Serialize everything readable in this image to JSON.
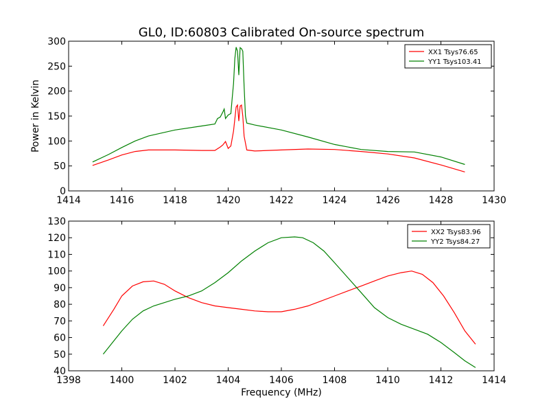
{
  "figure": {
    "title": "GL0, ID:60803 Calibrated On-source spectrum",
    "xlabel": "Frequency (MHz)"
  },
  "chart_data": [
    {
      "type": "line",
      "title": "GL0, ID:60803 Calibrated On-source spectrum",
      "xlabel": "",
      "ylabel": "Power in Kelvin",
      "xlim": [
        1414,
        1430
      ],
      "ylim": [
        0,
        300
      ],
      "xticks": [
        1414,
        1416,
        1418,
        1420,
        1422,
        1424,
        1426,
        1428,
        1430
      ],
      "yticks": [
        0,
        50,
        100,
        150,
        200,
        250,
        300
      ],
      "grid": false,
      "legend_position": "top-right",
      "series": [
        {
          "name": "XX1 Tsys76.65",
          "color": "#ff0000",
          "x": [
            1414.9,
            1415.5,
            1416,
            1416.5,
            1417,
            1418,
            1419,
            1419.5,
            1419.7,
            1419.8,
            1419.9,
            1420.0,
            1420.1,
            1420.2,
            1420.3,
            1420.35,
            1420.4,
            1420.45,
            1420.5,
            1420.55,
            1420.6,
            1420.7,
            1421,
            1422,
            1423,
            1424,
            1425,
            1426,
            1427,
            1428,
            1428.9
          ],
          "y": [
            51,
            62,
            72,
            79,
            82,
            82,
            81,
            81,
            88,
            92,
            99,
            85,
            90,
            120,
            168,
            172,
            140,
            170,
            172,
            150,
            110,
            82,
            80,
            82,
            84,
            83,
            79,
            74,
            66,
            52,
            38
          ]
        },
        {
          "name": "YY1 Tsys103.41",
          "color": "#008000",
          "x": [
            1414.9,
            1415.5,
            1416,
            1416.5,
            1417,
            1418,
            1419,
            1419.5,
            1419.6,
            1419.7,
            1419.8,
            1419.85,
            1419.9,
            1420.0,
            1420.1,
            1420.15,
            1420.2,
            1420.25,
            1420.3,
            1420.35,
            1420.4,
            1420.45,
            1420.5,
            1420.55,
            1420.6,
            1420.65,
            1420.7,
            1421,
            1422,
            1423,
            1424,
            1425,
            1426,
            1427,
            1428,
            1428.9
          ],
          "y": [
            58,
            73,
            87,
            100,
            110,
            122,
            130,
            134,
            145,
            148,
            158,
            164,
            145,
            152,
            155,
            185,
            215,
            265,
            288,
            280,
            232,
            287,
            285,
            280,
            210,
            150,
            136,
            132,
            122,
            108,
            93,
            83,
            79,
            78,
            68,
            53
          ]
        }
      ]
    },
    {
      "type": "line",
      "title": "",
      "xlabel": "Frequency (MHz)",
      "ylabel": "",
      "xlim": [
        1398,
        1414
      ],
      "ylim": [
        40,
        130
      ],
      "xticks": [
        1398,
        1400,
        1402,
        1404,
        1406,
        1408,
        1410,
        1412,
        1414
      ],
      "yticks": [
        40,
        50,
        60,
        70,
        80,
        90,
        100,
        110,
        120,
        130
      ],
      "grid": false,
      "legend_position": "top-right",
      "series": [
        {
          "name": "XX2 Tsys83.96",
          "color": "#ff0000",
          "x": [
            1399.3,
            1399.7,
            1400.0,
            1400.4,
            1400.8,
            1401.2,
            1401.6,
            1402.0,
            1402.5,
            1403.0,
            1403.5,
            1404.0,
            1404.5,
            1405.0,
            1405.5,
            1406.0,
            1406.5,
            1407.0,
            1407.5,
            1408.0,
            1408.5,
            1409.0,
            1409.5,
            1410.0,
            1410.5,
            1410.9,
            1411.3,
            1411.7,
            1412.1,
            1412.5,
            1412.9,
            1413.3
          ],
          "y": [
            67,
            77,
            85,
            91,
            93.5,
            94,
            92,
            88,
            84,
            81,
            79,
            78,
            77,
            76,
            75.5,
            75.5,
            77,
            79,
            82,
            85,
            88,
            91,
            94,
            97,
            99,
            100,
            98,
            93,
            85,
            75,
            64,
            56
          ]
        },
        {
          "name": "YY2 Tsys84.27",
          "color": "#008000",
          "x": [
            1399.3,
            1399.7,
            1400.0,
            1400.4,
            1400.8,
            1401.2,
            1401.6,
            1402.0,
            1402.5,
            1403.0,
            1403.5,
            1404.0,
            1404.5,
            1405.0,
            1405.5,
            1406.0,
            1406.5,
            1406.8,
            1407.2,
            1407.6,
            1408.0,
            1408.5,
            1409.0,
            1409.5,
            1410.0,
            1410.5,
            1411.0,
            1411.5,
            1412.0,
            1412.5,
            1412.9,
            1413.3
          ],
          "y": [
            50,
            58,
            64,
            71,
            76,
            79,
            81,
            83,
            85,
            88,
            93,
            99,
            106,
            112,
            117,
            120,
            120.5,
            120,
            117,
            112,
            105,
            96,
            87,
            78,
            72,
            68,
            65,
            62,
            57,
            51,
            46,
            42
          ]
        }
      ]
    }
  ]
}
